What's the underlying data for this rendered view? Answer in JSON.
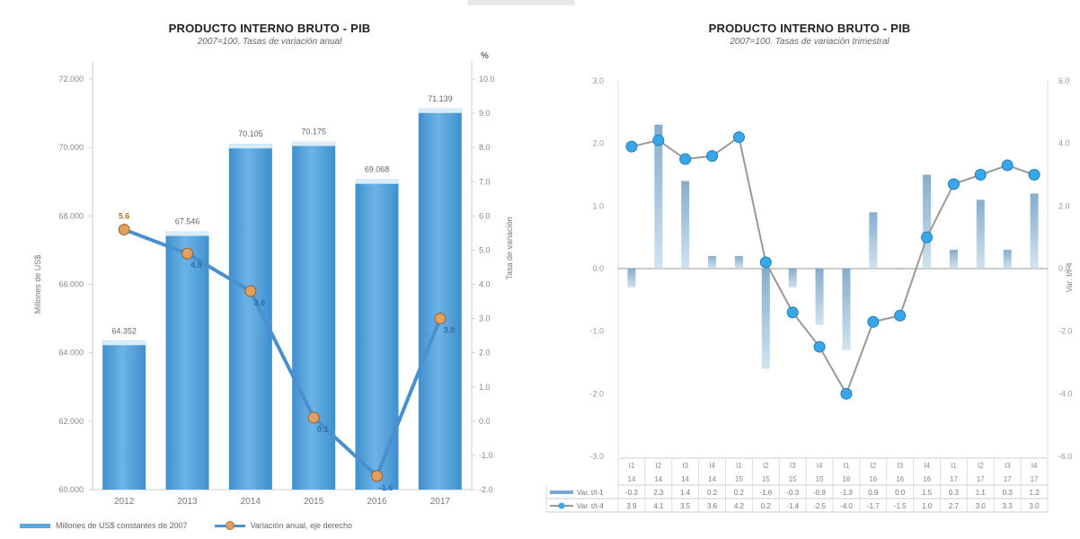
{
  "chart_data": [
    {
      "type": "bar+line",
      "title": "PRODUCTO INTERNO BRUTO - PIB",
      "subtitle": "2007=100. Tasas de variación anual",
      "ylabel_left": "Millones de US$",
      "ylabel_right": "Tasa de variación",
      "right_unit": "%",
      "categories": [
        "2012",
        "2013",
        "2014",
        "2015",
        "2016",
        "2017"
      ],
      "left_ylim": [
        60000,
        72000
      ],
      "left_ticks": [
        "72.000",
        "70.000",
        "68.000",
        "66.000",
        "64.000",
        "62.000",
        "60.000"
      ],
      "right_ylim": [
        -2.0,
        10.0
      ],
      "right_ticks": [
        "10.0",
        "9.0",
        "8.0",
        "7.0",
        "6.0",
        "5.0",
        "4.0",
        "3.0",
        "2.0",
        "1.0",
        "0.0",
        "-1.0",
        "-2.0"
      ],
      "bars": {
        "name": "Millones de US$ constantes de 2007",
        "values": [
          64352,
          67546,
          70105,
          70175,
          69068,
          71139
        ],
        "labels": [
          "64.352",
          "67.546",
          "70.105",
          "70.175",
          "69.068",
          "71.139"
        ]
      },
      "line": {
        "name": "Variación anual, eje derecho",
        "values": [
          5.6,
          4.9,
          3.8,
          0.1,
          -1.6,
          3.0
        ],
        "labels": [
          "5.6",
          "4.9",
          "3.8",
          "0.1",
          "-1.6",
          "3.0"
        ]
      },
      "colors": {
        "bar": "#5ba7dd",
        "bar_top": "#d8ecf9",
        "line": "#4a90d0",
        "marker": "#e0a060"
      }
    },
    {
      "type": "bar+line",
      "title": "PRODUCTO INTERNO BRUTO - PIB",
      "subtitle": "2007=100. Tasas de variación trimestral",
      "ylabel_right": "Var. t/t-4",
      "left_ylim": [
        -3.0,
        3.0
      ],
      "left_ticks": [
        "3.0",
        "2.0",
        "1.0",
        "0.0",
        "-1.0",
        "-2.0",
        "-3.0"
      ],
      "right_ylim": [
        -6.0,
        6.0
      ],
      "right_ticks": [
        "6.0",
        "4.0",
        "2.0",
        "0.0",
        "-2.0",
        "-4.0",
        "-6.0"
      ],
      "quarters": [
        "I1",
        "I2",
        "I3",
        "I4",
        "I1",
        "I2",
        "I3",
        "I4",
        "I1",
        "I2",
        "I3",
        "I4",
        "I1",
        "I2",
        "I3",
        "I4"
      ],
      "years": [
        "14",
        "14",
        "14",
        "14",
        "15",
        "15",
        "15",
        "15",
        "16",
        "16",
        "16",
        "16",
        "17",
        "17",
        "17",
        "17"
      ],
      "bar_series": {
        "name": "Var. t/t-1",
        "values": [
          -0.3,
          2.3,
          1.4,
          0.2,
          0.2,
          -1.6,
          -0.3,
          -0.9,
          -1.3,
          0.9,
          0.0,
          1.5,
          0.3,
          1.1,
          0.3,
          1.2
        ],
        "labels": [
          "-0.3",
          "2.3",
          "1.4",
          "0.2",
          "0.2",
          "-1.6",
          "-0.3",
          "-0.9",
          "-1.3",
          "0.9",
          "0.0",
          "1.5",
          "0.3",
          "1.1",
          "0.3",
          "1.2"
        ]
      },
      "line_series": {
        "name": "Var. t/t-4",
        "values": [
          3.9,
          4.1,
          3.5,
          3.6,
          4.2,
          0.2,
          -1.4,
          -2.5,
          -4.0,
          -1.7,
          -1.5,
          1.0,
          2.7,
          3.0,
          3.3,
          3.0
        ],
        "labels": [
          "3.9",
          "4.1",
          "3.5",
          "3.6",
          "4.2",
          "0.2",
          "-1.4",
          "-2.5",
          "-4.0",
          "-1.7",
          "-1.5",
          "1.0",
          "2.7",
          "3.0",
          "3.3",
          "3.0"
        ]
      },
      "colors": {
        "bar": "#8fb2cc",
        "line": "#999999",
        "marker": "#39a6e8"
      }
    }
  ]
}
